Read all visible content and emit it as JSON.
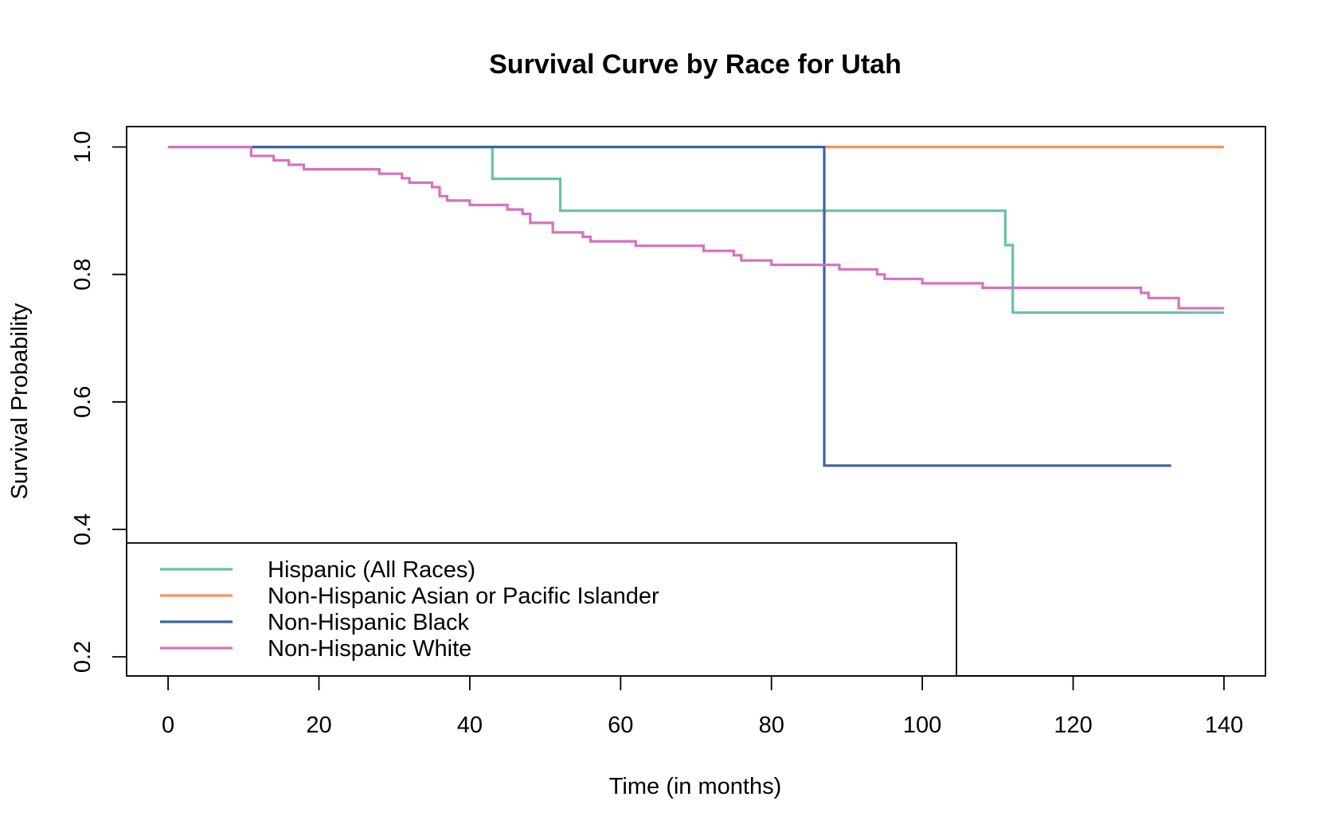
{
  "chart_data": {
    "type": "line",
    "title": "Survival Curve by Race for Utah",
    "xlabel": "Time (in months)",
    "ylabel": "Survival Probability",
    "xlim": [
      -5.5,
      145.5
    ],
    "ylim": [
      0.17,
      1.032
    ],
    "x_ticks": [
      0,
      20,
      40,
      60,
      80,
      100,
      120,
      140
    ],
    "x_tick_labels": [
      "0",
      "20",
      "40",
      "60",
      "80",
      "100",
      "120",
      "140"
    ],
    "y_ticks": [
      0.2,
      0.4,
      0.6,
      0.8,
      1.0
    ],
    "y_tick_labels": [
      "0.2",
      "0.4",
      "0.6",
      "0.8",
      "1.0"
    ],
    "grid": false,
    "legend_position": "bottom-left",
    "step": true,
    "series": [
      {
        "name": "Hispanic (All Races)",
        "color": "#66C2A5",
        "x": [
          0,
          43,
          52,
          111,
          112,
          140
        ],
        "y": [
          1.0,
          0.95,
          0.9,
          0.846,
          0.74,
          0.74
        ]
      },
      {
        "name": "Non-Hispanic Asian or Pacific Islander",
        "color": "#FC8D62",
        "x": [
          87,
          140
        ],
        "y": [
          1.0,
          1.0
        ]
      },
      {
        "name": "Non-Hispanic Black",
        "color": "#3E64A0",
        "x": [
          11,
          87,
          133
        ],
        "y": [
          1.0,
          0.5,
          0.5
        ]
      },
      {
        "name": "Non-Hispanic White",
        "color": "#D870C0",
        "x": [
          0,
          11,
          14,
          16,
          18,
          28,
          31,
          32,
          35,
          36,
          37,
          40,
          45,
          47,
          48,
          51,
          55,
          56,
          62,
          71,
          75,
          76,
          80,
          89,
          94,
          95,
          100,
          108,
          129,
          130,
          134,
          140
        ],
        "y": [
          1.0,
          0.986,
          0.979,
          0.972,
          0.965,
          0.958,
          0.951,
          0.944,
          0.937,
          0.923,
          0.916,
          0.909,
          0.902,
          0.895,
          0.881,
          0.866,
          0.859,
          0.852,
          0.845,
          0.837,
          0.83,
          0.822,
          0.815,
          0.808,
          0.8,
          0.793,
          0.786,
          0.779,
          0.771,
          0.763,
          0.747,
          0.747
        ]
      }
    ]
  }
}
